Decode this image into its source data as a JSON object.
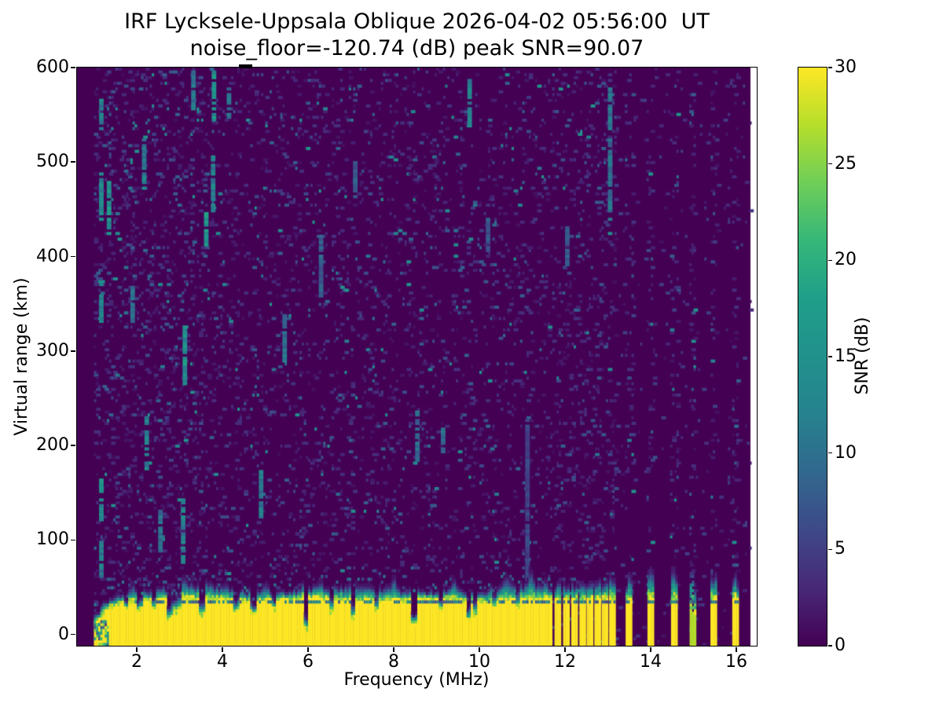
{
  "chart_data": {
    "type": "heatmap",
    "title": "IRF Lycksele-Uppsala Oblique 2026-04-02 05:56:00  UT",
    "subtitle": "noise_floor=-120.74 (dB) peak SNR=90.07",
    "xlabel": "Frequency (MHz)",
    "ylabel": "Virtual range (km)",
    "colorbar_label": "SNR (dB)",
    "xlim": [
      0.605,
      16.477
    ],
    "ylim": [
      -12,
      600
    ],
    "clim": [
      0,
      30
    ],
    "xticks": [
      2,
      4,
      6,
      8,
      10,
      12,
      14,
      16
    ],
    "yticks": [
      0,
      100,
      200,
      300,
      400,
      500,
      600
    ],
    "cbar_ticks": [
      0,
      5,
      10,
      15,
      20,
      25,
      30
    ],
    "colormap": "viridis",
    "colors": {
      "background": "#ffffff",
      "spine": "#000000",
      "cmap_min": "#440154",
      "cmap_max": "#fde725"
    },
    "viridis_stops": [
      [
        0.0,
        "#440154"
      ],
      [
        0.1,
        "#482878"
      ],
      [
        0.2,
        "#3e4989"
      ],
      [
        0.3,
        "#31688e"
      ],
      [
        0.4,
        "#26828e"
      ],
      [
        0.5,
        "#21918c"
      ],
      [
        0.6,
        "#1f9e89"
      ],
      [
        0.7,
        "#35b779"
      ],
      [
        0.8,
        "#6ece58"
      ],
      [
        0.9,
        "#b5de2b"
      ],
      [
        1.0,
        "#fde725"
      ]
    ],
    "data_extent": {
      "fmin": 1.0,
      "fmax": 16.33
    },
    "grid": {
      "df": 0.05,
      "dr": 3
    },
    "seed": 20260402,
    "noise": {
      "density_low_band": 0.13,
      "density_mid_band": 0.085,
      "density_high_band": 0.075,
      "density_stripe_zone": 0.1,
      "density_far_right": 0.022,
      "stripe_column_density": 0.1
    },
    "ground_band": {
      "fmax": 11.67,
      "profile": [
        [
          1.0,
          12
        ],
        [
          1.05,
          14
        ],
        [
          1.1,
          16
        ],
        [
          1.2,
          21
        ],
        [
          1.3,
          26
        ],
        [
          1.45,
          30
        ],
        [
          1.6,
          33
        ],
        [
          1.8,
          35
        ],
        [
          2.0,
          36
        ],
        [
          11.67,
          36
        ]
      ],
      "cap_height": 13,
      "dark_line_km": 33,
      "dark_line_value": 9,
      "low_striation_fmax": 1.35
    },
    "notches": [
      [
        1.75,
        0.05,
        28
      ],
      [
        2.08,
        0.06,
        26
      ],
      [
        2.42,
        0.05,
        28
      ],
      [
        2.77,
        0.06,
        18
      ],
      [
        2.9,
        0.04,
        25
      ],
      [
        3.0,
        0.05,
        27
      ],
      [
        3.52,
        0.06,
        20
      ],
      [
        4.33,
        0.06,
        24
      ],
      [
        4.72,
        0.06,
        21
      ],
      [
        5.2,
        0.05,
        26
      ],
      [
        5.95,
        0.045,
        5
      ],
      [
        6.55,
        0.05,
        24
      ],
      [
        7.05,
        0.06,
        17
      ],
      [
        7.6,
        0.05,
        25
      ],
      [
        8.48,
        0.06,
        12
      ],
      [
        9.1,
        0.05,
        26
      ],
      [
        9.73,
        0.05,
        15
      ],
      [
        9.88,
        0.05,
        20
      ],
      [
        10.35,
        0.05,
        27
      ],
      [
        10.9,
        0.04,
        28
      ]
    ],
    "cap_bumps": [
      [
        1.9,
        0.15,
        22
      ],
      [
        2.5,
        0.1,
        18
      ],
      [
        3.1,
        0.12,
        30
      ],
      [
        4.1,
        0.15,
        20
      ],
      [
        5.0,
        0.2,
        22
      ],
      [
        5.9,
        0.1,
        20
      ],
      [
        6.3,
        0.15,
        20
      ],
      [
        7.0,
        0.12,
        22
      ],
      [
        8.0,
        0.15,
        28
      ],
      [
        9.4,
        0.2,
        22
      ],
      [
        10.65,
        0.25,
        30
      ],
      [
        11.2,
        0.2,
        34
      ],
      [
        11.55,
        0.1,
        26
      ]
    ],
    "stripes": [
      {
        "f": 11.82,
        "w": 0.13,
        "cap": 16
      },
      {
        "f": 12.02,
        "w": 0.13,
        "cap": 18
      },
      {
        "f": 12.21,
        "w": 0.13,
        "cap": 15
      },
      {
        "f": 12.4,
        "w": 0.13,
        "cap": 17
      },
      {
        "f": 12.57,
        "w": 0.13,
        "cap": 15
      },
      {
        "f": 12.75,
        "w": 0.13,
        "cap": 18
      },
      {
        "f": 12.92,
        "w": 0.13,
        "cap": 16
      },
      {
        "f": 13.1,
        "w": 0.14,
        "cap": 20
      },
      {
        "f": 13.49,
        "w": 0.15,
        "cap": 20
      },
      {
        "f": 14.0,
        "w": 0.15,
        "cap": 24
      },
      {
        "f": 14.55,
        "w": 0.15,
        "cap": 26
      },
      {
        "f": 14.97,
        "w": 0.12,
        "cap": 38,
        "weak": true
      },
      {
        "f": 15.47,
        "w": 0.15,
        "cap": 22
      },
      {
        "f": 15.98,
        "w": 0.15,
        "cap": 20
      }
    ],
    "streaks": [
      [
        1.17,
        60,
        100,
        11
      ],
      [
        1.17,
        120,
        165,
        14
      ],
      [
        1.17,
        330,
        370,
        12
      ],
      [
        1.17,
        440,
        490,
        13
      ],
      [
        1.17,
        535,
        570,
        12
      ],
      [
        1.35,
        425,
        480,
        15
      ],
      [
        1.9,
        330,
        368,
        11
      ],
      [
        2.17,
        468,
        528,
        12
      ],
      [
        2.23,
        175,
        238,
        13
      ],
      [
        2.55,
        88,
        132,
        10
      ],
      [
        3.08,
        75,
        142,
        12
      ],
      [
        3.12,
        262,
        328,
        15
      ],
      [
        3.32,
        555,
        595,
        11
      ],
      [
        3.62,
        412,
        452,
        17
      ],
      [
        3.78,
        448,
        508,
        12
      ],
      [
        3.8,
        543,
        600,
        15
      ],
      [
        4.15,
        545,
        580,
        10
      ],
      [
        4.9,
        123,
        172,
        11
      ],
      [
        5.45,
        288,
        342,
        10
      ],
      [
        6.3,
        358,
        422,
        8
      ],
      [
        7.1,
        468,
        500,
        8
      ],
      [
        8.55,
        183,
        237,
        9
      ],
      [
        9.15,
        193,
        218,
        10
      ],
      [
        9.77,
        538,
        588,
        12
      ],
      [
        10.2,
        400,
        440,
        7
      ],
      [
        11.12,
        55,
        228,
        5.5
      ],
      [
        12.05,
        392,
        432,
        8
      ],
      [
        13.05,
        438,
        582,
        10
      ]
    ],
    "top_marker": {
      "f0": 4.38,
      "f1": 4.7,
      "y0": 82,
      "y1": 87
    }
  }
}
